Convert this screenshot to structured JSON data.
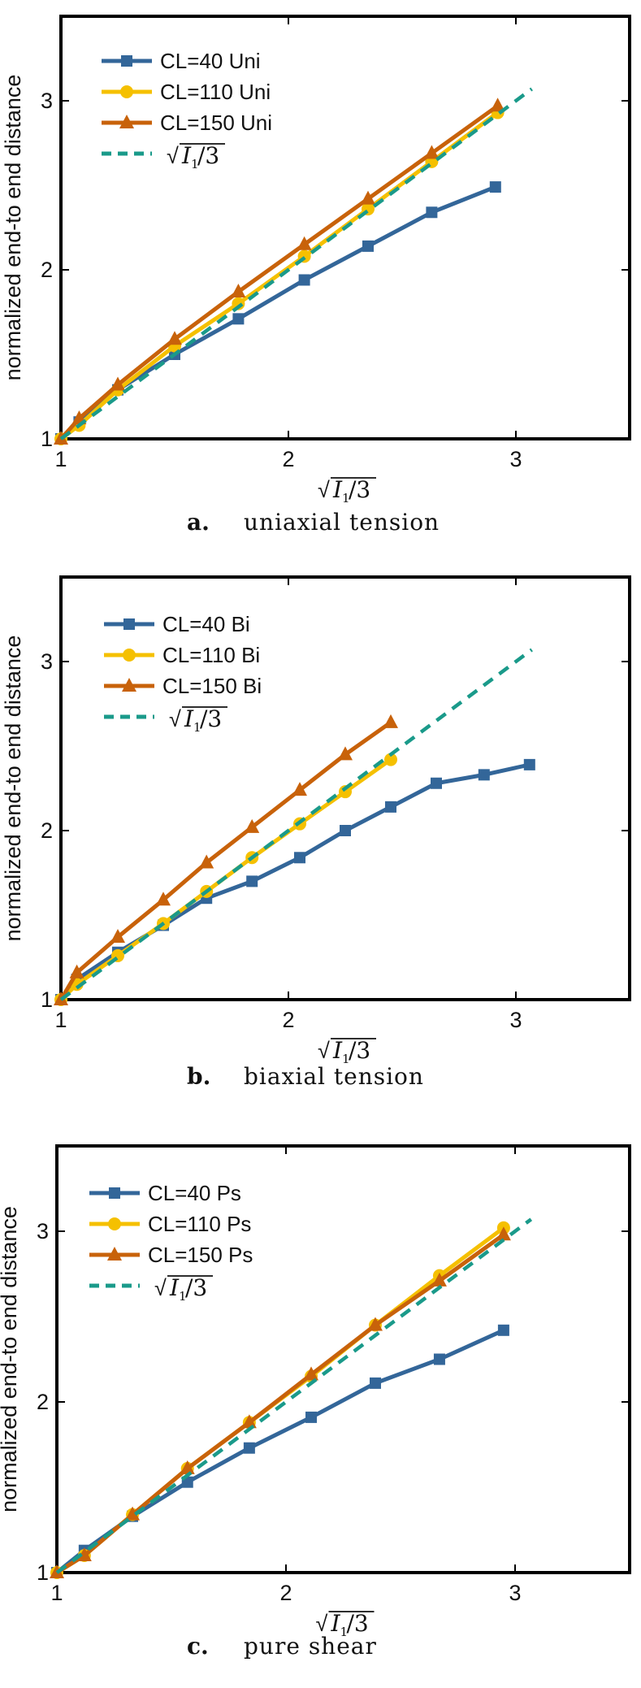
{
  "chart_data": [
    {
      "type": "line",
      "caption_letter": "a.",
      "caption_text": "uniaxial tension",
      "xlabel": "√I1/3",
      "ylabel": "normalized end-to end distance",
      "xlim": [
        1,
        3.5
      ],
      "ylim": [
        1,
        3.5
      ],
      "x_ticks": [
        "1",
        "2",
        "3"
      ],
      "y_ticks": [
        "1",
        "2",
        "3"
      ],
      "grid": false,
      "legend_position": "top-left",
      "series": [
        {
          "name": "CL=40 Uni",
          "color": "#336699",
          "marker": "square",
          "dashed": false,
          "x": [
            1,
            1.08,
            1.25,
            1.5,
            1.78,
            2.07,
            2.35,
            2.63,
            2.91
          ],
          "y": [
            1,
            1.1,
            1.29,
            1.5,
            1.71,
            1.94,
            2.14,
            2.34,
            2.49
          ]
        },
        {
          "name": "CL=110 Uni",
          "color": "#f5c000",
          "marker": "circle",
          "dashed": false,
          "x": [
            1,
            1.08,
            1.25,
            1.5,
            1.78,
            2.07,
            2.35,
            2.63,
            2.92
          ],
          "y": [
            1,
            1.08,
            1.29,
            1.55,
            1.8,
            2.08,
            2.36,
            2.64,
            2.93
          ]
        },
        {
          "name": "CL=150 Uni",
          "color": "#c8620a",
          "marker": "triangle",
          "dashed": false,
          "x": [
            1,
            1.08,
            1.25,
            1.5,
            1.78,
            2.07,
            2.35,
            2.63,
            2.92
          ],
          "y": [
            1,
            1.12,
            1.32,
            1.59,
            1.87,
            2.15,
            2.42,
            2.69,
            2.97
          ]
        },
        {
          "name": "√I1/3",
          "color": "#1a9a8a",
          "marker": "none",
          "dashed": true,
          "x": [
            1,
            3.07
          ],
          "y": [
            1,
            3.07
          ]
        }
      ]
    },
    {
      "type": "line",
      "caption_letter": "b.",
      "caption_text": "biaxial tension",
      "xlabel": "√I1/3",
      "ylabel": "normalized end-to end distance",
      "xlim": [
        1,
        3.5
      ],
      "ylim": [
        1,
        3.5
      ],
      "x_ticks": [
        "1",
        "2",
        "3"
      ],
      "y_ticks": [
        "1",
        "2",
        "3"
      ],
      "grid": false,
      "legend_position": "top-left",
      "series": [
        {
          "name": "CL=40 Bi",
          "color": "#336699",
          "marker": "square",
          "dashed": false,
          "x": [
            1,
            1.07,
            1.25,
            1.45,
            1.64,
            1.84,
            2.05,
            2.25,
            2.45,
            2.65,
            2.86,
            3.06
          ],
          "y": [
            1,
            1.12,
            1.28,
            1.44,
            1.6,
            1.7,
            1.84,
            2.0,
            2.14,
            2.28,
            2.33,
            2.39
          ]
        },
        {
          "name": "CL=110 Bi",
          "color": "#f5c000",
          "marker": "circle",
          "dashed": false,
          "x": [
            1,
            1.07,
            1.25,
            1.45,
            1.64,
            1.84,
            2.05,
            2.25,
            2.45
          ],
          "y": [
            1,
            1.09,
            1.26,
            1.45,
            1.64,
            1.84,
            2.04,
            2.23,
            2.42
          ]
        },
        {
          "name": "CL=150 Bi",
          "color": "#c8620a",
          "marker": "triangle",
          "dashed": false,
          "x": [
            1,
            1.07,
            1.25,
            1.45,
            1.64,
            1.84,
            2.05,
            2.25,
            2.45
          ],
          "y": [
            1,
            1.16,
            1.37,
            1.59,
            1.81,
            2.02,
            2.24,
            2.45,
            2.64
          ]
        },
        {
          "name": "√I1/3",
          "color": "#1a9a8a",
          "marker": "none",
          "dashed": true,
          "x": [
            1,
            3.07
          ],
          "y": [
            1,
            3.07
          ]
        }
      ]
    },
    {
      "type": "line",
      "caption_letter": "c.",
      "caption_text": "pure shear",
      "xlabel": "√I1/3",
      "ylabel": "normalized end-to end distance",
      "xlim": [
        1,
        3.5
      ],
      "ylim": [
        1,
        3.5
      ],
      "x_ticks": [
        "1",
        "2",
        "3"
      ],
      "y_ticks": [
        "1",
        "2",
        "3"
      ],
      "grid": false,
      "legend_position": "top-left",
      "series": [
        {
          "name": "CL=40 Ps",
          "color": "#336699",
          "marker": "square",
          "dashed": false,
          "x": [
            1,
            1.12,
            1.33,
            1.57,
            1.84,
            2.11,
            2.39,
            2.67,
            2.95
          ],
          "y": [
            1,
            1.13,
            1.33,
            1.53,
            1.73,
            1.91,
            2.11,
            2.25,
            2.42
          ]
        },
        {
          "name": "CL=110 Ps",
          "color": "#f5c000",
          "marker": "circle",
          "dashed": false,
          "x": [
            1,
            1.12,
            1.33,
            1.57,
            1.84,
            2.11,
            2.39,
            2.67,
            2.95
          ],
          "y": [
            1,
            1.1,
            1.34,
            1.61,
            1.88,
            2.15,
            2.45,
            2.74,
            3.02
          ]
        },
        {
          "name": "CL=150 Ps",
          "color": "#c8620a",
          "marker": "triangle",
          "dashed": false,
          "x": [
            1,
            1.12,
            1.33,
            1.57,
            1.84,
            2.11,
            2.39,
            2.67,
            2.95
          ],
          "y": [
            1,
            1.1,
            1.34,
            1.61,
            1.88,
            2.16,
            2.45,
            2.71,
            2.98
          ]
        },
        {
          "name": "√I1/3",
          "color": "#1a9a8a",
          "marker": "none",
          "dashed": true,
          "x": [
            1,
            3.07
          ],
          "y": [
            1,
            3.07
          ]
        }
      ]
    }
  ]
}
